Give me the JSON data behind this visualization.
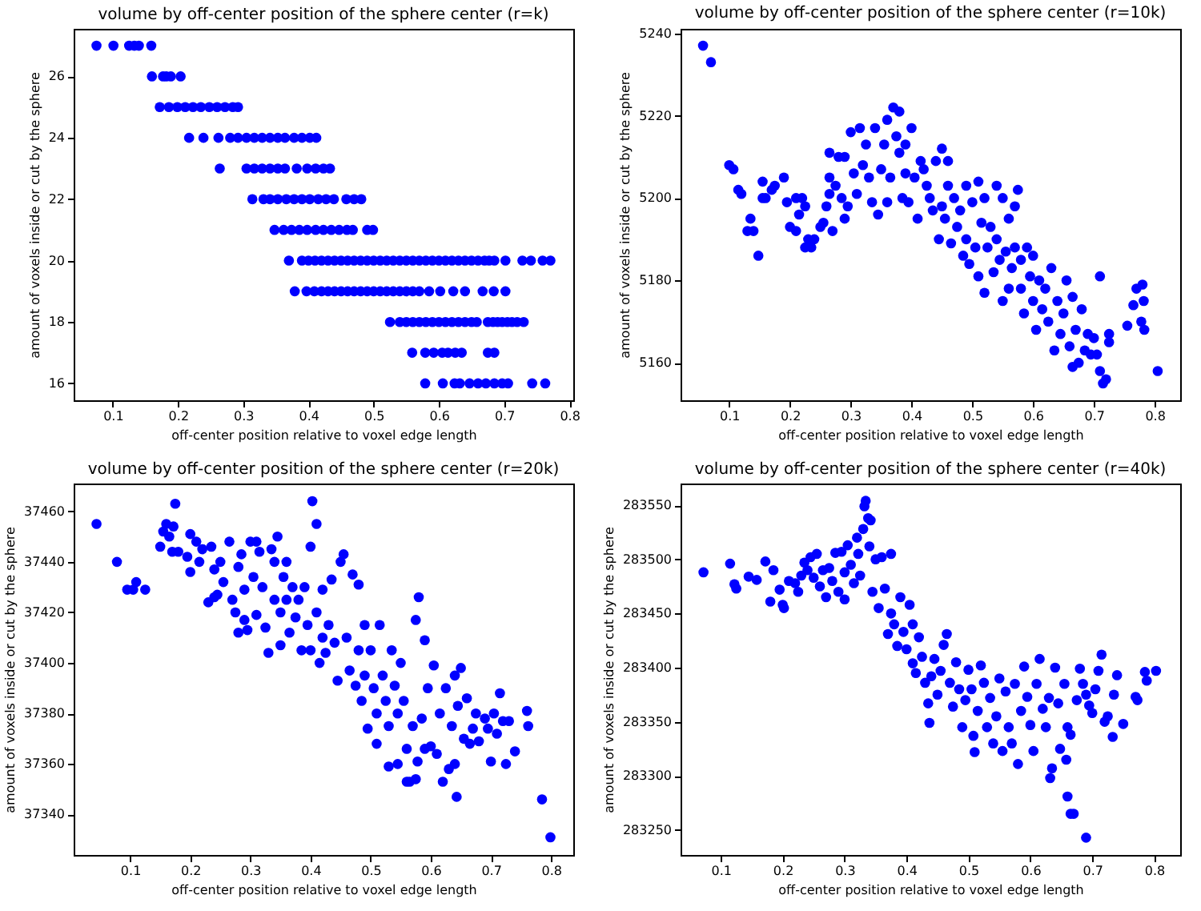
{
  "chart_data": [
    {
      "type": "scatter",
      "title": "volume by off-center position of the sphere center (r=k)",
      "xlabel": "off-center position relative to voxel edge length",
      "ylabel": "amount of voxels inside or cut by the sphere",
      "color": "#0000ff",
      "marker": "circle",
      "xlim": [
        0.04,
        0.806
      ],
      "ylim": [
        15.45,
        27.55
      ],
      "xticks": [
        0.1,
        0.2,
        0.3,
        0.4,
        0.5,
        0.6,
        0.7,
        0.8
      ],
      "yticks": [
        16,
        18,
        20,
        22,
        24,
        26
      ],
      "x": [
        0.075,
        0.101,
        0.125,
        0.133,
        0.14,
        0.159,
        0.16,
        0.177,
        0.182,
        0.189,
        0.204,
        0.172,
        0.186,
        0.199,
        0.211,
        0.223,
        0.235,
        0.248,
        0.26,
        0.272,
        0.284,
        0.292,
        0.217,
        0.239,
        0.262,
        0.28,
        0.292,
        0.305,
        0.317,
        0.329,
        0.341,
        0.353,
        0.364,
        0.378,
        0.39,
        0.402,
        0.412,
        0.264,
        0.305,
        0.317,
        0.329,
        0.341,
        0.353,
        0.364,
        0.382,
        0.398,
        0.411,
        0.423,
        0.433,
        0.314,
        0.331,
        0.341,
        0.353,
        0.366,
        0.378,
        0.39,
        0.402,
        0.415,
        0.427,
        0.439,
        0.458,
        0.47,
        0.481,
        0.348,
        0.362,
        0.374,
        0.386,
        0.398,
        0.411,
        0.423,
        0.435,
        0.447,
        0.459,
        0.468,
        0.49,
        0.499,
        0.37,
        0.39,
        0.41,
        0.43,
        0.45,
        0.47,
        0.49,
        0.51,
        0.53,
        0.55,
        0.57,
        0.59,
        0.61,
        0.63,
        0.65,
        0.67,
        0.685,
        0.702,
        0.728,
        0.741,
        0.759,
        0.771,
        0.379,
        0.397,
        0.409,
        0.42,
        0.44,
        0.46,
        0.48,
        0.5,
        0.52,
        0.54,
        0.56,
        0.585,
        0.602,
        0.622,
        0.64,
        0.667,
        0.684,
        0.702,
        0.525,
        0.54,
        0.56,
        0.58,
        0.6,
        0.62,
        0.64,
        0.658,
        0.675,
        0.69,
        0.705,
        0.72,
        0.73,
        0.559,
        0.579,
        0.592,
        0.605,
        0.614,
        0.625,
        0.635,
        0.675,
        0.685,
        0.579,
        0.606,
        0.624,
        0.632,
        0.647,
        0.66,
        0.672,
        0.685,
        0.697,
        0.706,
        0.743,
        0.763,
        0.4,
        0.42,
        0.44,
        0.46,
        0.48,
        0.5,
        0.52,
        0.54,
        0.56,
        0.58,
        0.6,
        0.62,
        0.64,
        0.66,
        0.677,
        0.43,
        0.45,
        0.47,
        0.49,
        0.51,
        0.53,
        0.55,
        0.57,
        0.55,
        0.57,
        0.59,
        0.61,
        0.63,
        0.65,
        0.683,
        0.697,
        0.712
      ],
      "values": [
        27,
        27,
        27,
        27,
        27,
        27,
        26,
        26,
        26,
        26,
        26,
        25,
        25,
        25,
        25,
        25,
        25,
        25,
        25,
        25,
        25,
        25,
        24,
        24,
        24,
        24,
        24,
        24,
        24,
        24,
        24,
        24,
        24,
        24,
        24,
        24,
        24,
        23,
        23,
        23,
        23,
        23,
        23,
        23,
        23,
        23,
        23,
        23,
        23,
        22,
        22,
        22,
        22,
        22,
        22,
        22,
        22,
        22,
        22,
        22,
        22,
        22,
        22,
        21,
        21,
        21,
        21,
        21,
        21,
        21,
        21,
        21,
        21,
        21,
        21,
        21,
        20,
        20,
        20,
        20,
        20,
        20,
        20,
        20,
        20,
        20,
        20,
        20,
        20,
        20,
        20,
        20,
        20,
        20,
        20,
        20,
        20,
        20,
        19,
        19,
        19,
        19,
        19,
        19,
        19,
        19,
        19,
        19,
        19,
        19,
        19,
        19,
        19,
        19,
        19,
        19,
        18,
        18,
        18,
        18,
        18,
        18,
        18,
        18,
        18,
        18,
        18,
        18,
        18,
        17,
        17,
        17,
        17,
        17,
        17,
        17,
        17,
        17,
        16,
        16,
        16,
        16,
        16,
        16,
        16,
        16,
        16,
        16,
        16,
        16,
        20,
        20,
        20,
        20,
        20,
        20,
        20,
        20,
        20,
        20,
        20,
        20,
        20,
        20,
        20,
        19,
        19,
        19,
        19,
        19,
        19,
        19,
        19,
        18,
        18,
        18,
        18,
        18,
        18,
        18,
        18,
        18
      ]
    },
    {
      "type": "scatter",
      "title": "volume by off-center position of the sphere center (r=10k)",
      "xlabel": "off-center position relative to voxel edge length",
      "ylabel": "amount of voxels inside or cut by the sphere",
      "color": "#0000ff",
      "marker": "circle",
      "xlim": [
        0.02,
        0.842
      ],
      "ylim": [
        5150.9,
        5241.1
      ],
      "xticks": [
        0.1,
        0.2,
        0.3,
        0.4,
        0.5,
        0.6,
        0.7,
        0.8
      ],
      "yticks": [
        5160,
        5180,
        5200,
        5220,
        5240
      ],
      "x": [
        0.057,
        0.07,
        0.1,
        0.107,
        0.115,
        0.12,
        0.135,
        0.13,
        0.14,
        0.148,
        0.155,
        0.155,
        0.16,
        0.17,
        0.175,
        0.19,
        0.195,
        0.2,
        0.21,
        0.215,
        0.21,
        0.22,
        0.225,
        0.225,
        0.23,
        0.235,
        0.24,
        0.25,
        0.255,
        0.26,
        0.265,
        0.265,
        0.265,
        0.27,
        0.275,
        0.28,
        0.285,
        0.29,
        0.29,
        0.295,
        0.3,
        0.305,
        0.31,
        0.315,
        0.32,
        0.325,
        0.33,
        0.335,
        0.34,
        0.345,
        0.35,
        0.355,
        0.36,
        0.36,
        0.365,
        0.37,
        0.375,
        0.38,
        0.38,
        0.385,
        0.39,
        0.39,
        0.395,
        0.4,
        0.405,
        0.41,
        0.415,
        0.42,
        0.425,
        0.43,
        0.435,
        0.44,
        0.445,
        0.45,
        0.45,
        0.455,
        0.46,
        0.46,
        0.465,
        0.47,
        0.475,
        0.48,
        0.485,
        0.49,
        0.49,
        0.495,
        0.5,
        0.505,
        0.51,
        0.51,
        0.515,
        0.52,
        0.52,
        0.525,
        0.53,
        0.535,
        0.54,
        0.54,
        0.545,
        0.55,
        0.55,
        0.555,
        0.56,
        0.56,
        0.565,
        0.57,
        0.57,
        0.575,
        0.58,
        0.58,
        0.585,
        0.59,
        0.595,
        0.6,
        0.6,
        0.605,
        0.61,
        0.615,
        0.62,
        0.625,
        0.63,
        0.635,
        0.64,
        0.645,
        0.65,
        0.655,
        0.66,
        0.665,
        0.665,
        0.67,
        0.675,
        0.68,
        0.685,
        0.69,
        0.695,
        0.7,
        0.705,
        0.71,
        0.715,
        0.71,
        0.72,
        0.725,
        0.725,
        0.755,
        0.765,
        0.77,
        0.78,
        0.778,
        0.782,
        0.783,
        0.805
      ],
      "values": [
        5237,
        5233,
        5208,
        5207,
        5202,
        5201,
        5195,
        5192,
        5192,
        5186,
        5204,
        5200,
        5200,
        5202,
        5203,
        5205,
        5199,
        5193,
        5200,
        5196,
        5192,
        5200,
        5198,
        5188,
        5190,
        5188,
        5190,
        5193,
        5194,
        5198,
        5201,
        5205,
        5211,
        5192,
        5203,
        5210,
        5200,
        5195,
        5210,
        5198,
        5216,
        5206,
        5201,
        5217,
        5208,
        5213,
        5205,
        5199,
        5217,
        5196,
        5207,
        5213,
        5219,
        5199,
        5205,
        5222,
        5215,
        5221,
        5211,
        5200,
        5213,
        5206,
        5199,
        5217,
        5205,
        5195,
        5209,
        5207,
        5203,
        5200,
        5197,
        5209,
        5190,
        5212,
        5198,
        5195,
        5209,
        5203,
        5189,
        5200,
        5193,
        5197,
        5186,
        5203,
        5190,
        5184,
        5199,
        5188,
        5204,
        5181,
        5194,
        5200,
        5177,
        5188,
        5193,
        5182,
        5203,
        5190,
        5185,
        5200,
        5175,
        5187,
        5195,
        5178,
        5183,
        5198,
        5188,
        5202,
        5178,
        5185,
        5172,
        5188,
        5181,
        5175,
        5186,
        5168,
        5180,
        5173,
        5178,
        5170,
        5183,
        5163,
        5175,
        5167,
        5172,
        5180,
        5164,
        5176,
        5159,
        5168,
        5160,
        5173,
        5163,
        5167,
        5162,
        5166,
        5162,
        5158,
        5155,
        5181,
        5156,
        5165,
        5167,
        5169,
        5174,
        5178,
        5179,
        5170,
        5175,
        5168,
        5158
      ]
    },
    {
      "type": "scatter",
      "title": "volume by off-center position of the sphere center (r=20k)",
      "xlabel": "off-center position relative to voxel edge length",
      "ylabel": "amount of voxels inside or cut by the sphere",
      "color": "#0000ff",
      "marker": "circle",
      "xlim": [
        0.006,
        0.837
      ],
      "ylim": [
        37324,
        37471
      ],
      "xticks": [
        0.1,
        0.2,
        0.3,
        0.4,
        0.5,
        0.6,
        0.7,
        0.8
      ],
      "yticks": [
        37340,
        37360,
        37380,
        37400,
        37420,
        37440,
        37460
      ],
      "x": [
        0.044,
        0.078,
        0.095,
        0.105,
        0.11,
        0.125,
        0.15,
        0.155,
        0.16,
        0.165,
        0.17,
        0.172,
        0.175,
        0.18,
        0.195,
        0.2,
        0.2,
        0.21,
        0.215,
        0.22,
        0.23,
        0.235,
        0.24,
        0.24,
        0.245,
        0.25,
        0.255,
        0.265,
        0.27,
        0.275,
        0.28,
        0.28,
        0.285,
        0.29,
        0.29,
        0.295,
        0.3,
        0.305,
        0.31,
        0.31,
        0.315,
        0.32,
        0.325,
        0.33,
        0.335,
        0.34,
        0.34,
        0.345,
        0.35,
        0.35,
        0.355,
        0.36,
        0.36,
        0.365,
        0.37,
        0.375,
        0.38,
        0.385,
        0.39,
        0.395,
        0.4,
        0.4,
        0.403,
        0.41,
        0.41,
        0.415,
        0.42,
        0.42,
        0.425,
        0.43,
        0.435,
        0.44,
        0.445,
        0.45,
        0.455,
        0.46,
        0.465,
        0.47,
        0.475,
        0.48,
        0.48,
        0.485,
        0.49,
        0.49,
        0.495,
        0.5,
        0.505,
        0.51,
        0.51,
        0.515,
        0.52,
        0.525,
        0.53,
        0.53,
        0.535,
        0.54,
        0.545,
        0.545,
        0.55,
        0.555,
        0.56,
        0.56,
        0.565,
        0.57,
        0.575,
        0.575,
        0.578,
        0.58,
        0.585,
        0.59,
        0.59,
        0.595,
        0.6,
        0.605,
        0.61,
        0.615,
        0.62,
        0.625,
        0.63,
        0.635,
        0.64,
        0.64,
        0.643,
        0.645,
        0.65,
        0.655,
        0.66,
        0.665,
        0.67,
        0.675,
        0.68,
        0.69,
        0.695,
        0.7,
        0.705,
        0.71,
        0.715,
        0.72,
        0.725,
        0.73,
        0.74,
        0.76,
        0.762,
        0.785,
        0.799
      ],
      "values": [
        37455,
        37440,
        37429,
        37429,
        37432,
        37429,
        37446,
        37452,
        37455,
        37450,
        37444,
        37454,
        37463,
        37444,
        37442,
        37451,
        37436,
        37448,
        37440,
        37445,
        37424,
        37446,
        37437,
        37426,
        37427,
        37440,
        37432,
        37448,
        37425,
        37420,
        37412,
        37438,
        37443,
        37429,
        37417,
        37413,
        37448,
        37434,
        37448,
        37419,
        37444,
        37430,
        37414,
        37404,
        37445,
        37440,
        37425,
        37450,
        37407,
        37420,
        37434,
        37440,
        37425,
        37412,
        37430,
        37418,
        37425,
        37405,
        37430,
        37415,
        37446,
        37405,
        37464,
        37455,
        37420,
        37400,
        37410,
        37429,
        37404,
        37415,
        37433,
        37408,
        37393,
        37440,
        37443,
        37410,
        37397,
        37435,
        37391,
        37431,
        37405,
        37385,
        37395,
        37415,
        37374,
        37405,
        37390,
        37380,
        37368,
        37415,
        37395,
        37385,
        37359,
        37375,
        37405,
        37391,
        37360,
        37380,
        37400,
        37385,
        37366,
        37353,
        37353,
        37375,
        37354,
        37417,
        37361,
        37426,
        37378,
        37366,
        37409,
        37390,
        37367,
        37399,
        37364,
        37380,
        37353,
        37390,
        37358,
        37375,
        37395,
        37360,
        37347,
        37383,
        37398,
        37370,
        37386,
        37368,
        37374,
        37380,
        37369,
        37378,
        37374,
        37361,
        37380,
        37372,
        37388,
        37377,
        37360,
        37377,
        37365,
        37381,
        37375,
        37346,
        37331
      ]
    },
    {
      "type": "scatter",
      "title": "volume by off-center position of the sphere center (r=40k)",
      "xlabel": "off-center position relative to voxel edge length",
      "ylabel": "amount of voxels inside or cut by the sphere",
      "color": "#0000ff",
      "marker": "circle",
      "xlim": [
        0.035,
        0.842
      ],
      "ylim": [
        283227,
        283570
      ],
      "xticks": [
        0.1,
        0.2,
        0.3,
        0.4,
        0.5,
        0.6,
        0.7,
        0.8
      ],
      "yticks": [
        283250,
        283300,
        283350,
        283400,
        283450,
        283500,
        283550
      ],
      "x": [
        0.072,
        0.115,
        0.122,
        0.125,
        0.145,
        0.158,
        0.172,
        0.18,
        0.185,
        0.195,
        0.2,
        0.202,
        0.21,
        0.22,
        0.225,
        0.23,
        0.235,
        0.24,
        0.245,
        0.25,
        0.255,
        0.26,
        0.265,
        0.27,
        0.275,
        0.28,
        0.285,
        0.29,
        0.295,
        0.3,
        0.3,
        0.305,
        0.31,
        0.315,
        0.32,
        0.322,
        0.325,
        0.33,
        0.332,
        0.334,
        0.338,
        0.34,
        0.342,
        0.345,
        0.35,
        0.355,
        0.36,
        0.365,
        0.37,
        0.375,
        0.375,
        0.38,
        0.385,
        0.39,
        0.395,
        0.4,
        0.405,
        0.41,
        0.41,
        0.415,
        0.42,
        0.425,
        0.43,
        0.435,
        0.437,
        0.44,
        0.445,
        0.45,
        0.455,
        0.46,
        0.465,
        0.47,
        0.475,
        0.48,
        0.485,
        0.49,
        0.495,
        0.5,
        0.505,
        0.508,
        0.51,
        0.515,
        0.52,
        0.525,
        0.53,
        0.535,
        0.54,
        0.545,
        0.55,
        0.555,
        0.56,
        0.565,
        0.57,
        0.575,
        0.58,
        0.585,
        0.59,
        0.595,
        0.6,
        0.605,
        0.61,
        0.615,
        0.62,
        0.625,
        0.63,
        0.632,
        0.635,
        0.64,
        0.645,
        0.648,
        0.655,
        0.658,
        0.66,
        0.665,
        0.66,
        0.665,
        0.67,
        0.675,
        0.68,
        0.685,
        0.69,
        0.69,
        0.695,
        0.7,
        0.705,
        0.71,
        0.715,
        0.72,
        0.725,
        0.733,
        0.735,
        0.74,
        0.75,
        0.77,
        0.773,
        0.785,
        0.788,
        0.803
      ],
      "values": [
        283488,
        283496,
        283477,
        283473,
        283484,
        283481,
        283498,
        283461,
        283490,
        283472,
        283458,
        283455,
        283480,
        283478,
        283470,
        283485,
        283497,
        283490,
        283502,
        283483,
        283505,
        283475,
        283490,
        283465,
        283492,
        283480,
        283506,
        283470,
        283507,
        283488,
        283463,
        283513,
        283495,
        283478,
        283520,
        283505,
        283485,
        283528,
        283549,
        283554,
        283538,
        283512,
        283536,
        283470,
        283500,
        283455,
        283502,
        283473,
        283431,
        283505,
        283450,
        283440,
        283420,
        283465,
        283433,
        283417,
        283458,
        283440,
        283404,
        283395,
        283428,
        283410,
        283386,
        283367,
        283349,
        283392,
        283408,
        283375,
        283397,
        283421,
        283431,
        283386,
        283364,
        283405,
        283380,
        283345,
        283370,
        283398,
        283380,
        283337,
        283322,
        283360,
        283402,
        283386,
        283345,
        283372,
        283330,
        283355,
        283390,
        283323,
        283378,
        283345,
        283330,
        283385,
        283311,
        283360,
        283401,
        283373,
        283347,
        283323,
        283385,
        283408,
        283362,
        283345,
        283372,
        283298,
        283307,
        283400,
        283367,
        283325,
        283385,
        283315,
        283345,
        283338,
        283281,
        283265,
        283265,
        283370,
        283399,
        283385,
        283243,
        283375,
        283365,
        283358,
        283380,
        283397,
        283412,
        283350,
        283355,
        283336,
        283375,
        283393,
        283348,
        283373,
        283370,
        283396,
        283388,
        283397
      ]
    }
  ]
}
